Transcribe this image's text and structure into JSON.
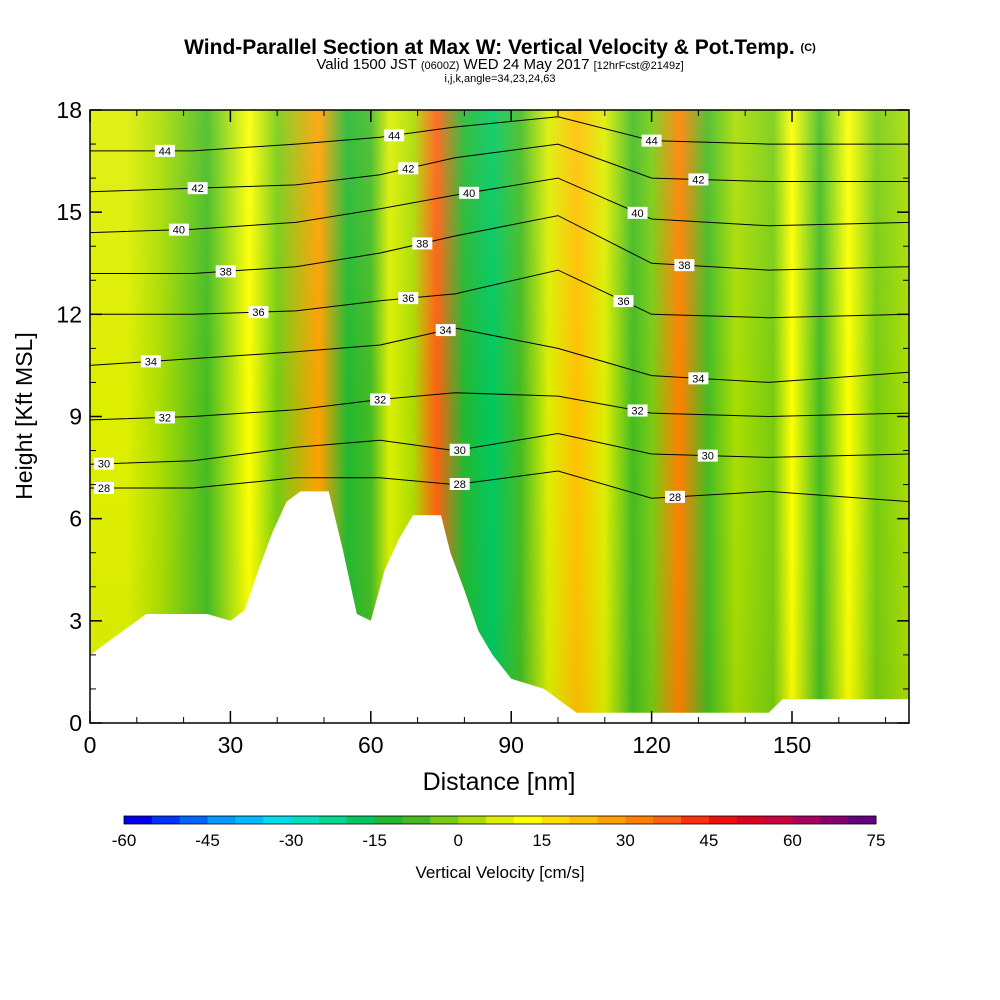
{
  "title": {
    "main": "Wind-Parallel Section at Max W: Vertical Velocity & Pot.Temp.",
    "main_mark": "(C)",
    "valid_prefix": "Valid 1500 JST",
    "valid_utc": "(0600Z)",
    "valid_date": "WED 24 May 2017",
    "valid_fcst": "[12hrFcst@2149z]",
    "ijk": "i,j,k,angle=34,23,24,63"
  },
  "chart_data": {
    "type": "heatmap",
    "xlabel": "Distance [nm]",
    "ylabel": "Height [Kft MSL]",
    "xlim": [
      0,
      175
    ],
    "ylim": [
      0,
      18
    ],
    "x_ticks": [
      0,
      30,
      60,
      90,
      120,
      150
    ],
    "y_ticks": [
      0,
      3,
      6,
      9,
      12,
      15,
      18
    ],
    "colorbar": {
      "label": "Vertical Velocity [cm/s]",
      "ticks": [
        -60,
        -45,
        -30,
        -15,
        0,
        15,
        30,
        45,
        60,
        75
      ],
      "levels": [
        -60,
        -55,
        -50,
        -45,
        -40,
        -35,
        -30,
        -25,
        -20,
        -15,
        -10,
        -5,
        0,
        5,
        10,
        15,
        20,
        25,
        30,
        35,
        40,
        45,
        50,
        55,
        60,
        65,
        70,
        75
      ],
      "colors": [
        "#0000ee",
        "#0033ff",
        "#0066ff",
        "#0099ff",
        "#00bbff",
        "#00ddee",
        "#00e0c0",
        "#00d890",
        "#00c860",
        "#22b830",
        "#44bb22",
        "#77cc11",
        "#aadd00",
        "#ddee00",
        "#ffff00",
        "#ffdd00",
        "#ffc000",
        "#ffa000",
        "#ff8000",
        "#ff6010",
        "#ff3010",
        "#ee1010",
        "#dd0020",
        "#cc0040",
        "#aa0060",
        "#880070",
        "#660080"
      ]
    },
    "velocity_columns": [
      {
        "x": 2,
        "w": 5
      },
      {
        "x": 8,
        "w": 7
      },
      {
        "x": 15,
        "w": 0
      },
      {
        "x": 25,
        "w": -6
      },
      {
        "x": 34,
        "w": 12
      },
      {
        "x": 40,
        "w": -4
      },
      {
        "x": 49,
        "w": 28
      },
      {
        "x": 55,
        "w": -14
      },
      {
        "x": 60,
        "w": -10
      },
      {
        "x": 64,
        "w": 8
      },
      {
        "x": 69,
        "w": 4
      },
      {
        "x": 74,
        "w": 38
      },
      {
        "x": 80,
        "w": -12
      },
      {
        "x": 86,
        "w": -18
      },
      {
        "x": 92,
        "w": -6
      },
      {
        "x": 98,
        "w": 6
      },
      {
        "x": 104,
        "w": 22
      },
      {
        "x": 110,
        "w": 6
      },
      {
        "x": 116,
        "w": -10
      },
      {
        "x": 120,
        "w": -4
      },
      {
        "x": 126,
        "w": 30
      },
      {
        "x": 132,
        "w": -6
      },
      {
        "x": 138,
        "w": 2
      },
      {
        "x": 146,
        "w": -4
      },
      {
        "x": 150,
        "w": 12
      },
      {
        "x": 156,
        "w": -6
      },
      {
        "x": 162,
        "w": 14
      },
      {
        "x": 168,
        "w": -3
      },
      {
        "x": 175,
        "w": 2
      }
    ],
    "theta_isolines": [
      {
        "value": 28,
        "label_x": [
          3,
          125,
          79
        ],
        "y": [
          6.9,
          6.9,
          7.2,
          7.2,
          7.0,
          7.4,
          6.6,
          6.8,
          6.5
        ]
      },
      {
        "value": 30,
        "label_x": [
          3,
          79,
          132
        ],
        "y": [
          7.6,
          7.7,
          8.1,
          8.3,
          8.0,
          8.5,
          7.9,
          7.8,
          7.9
        ]
      },
      {
        "value": 32,
        "label_x": [
          16,
          62,
          117
        ],
        "y": [
          8.9,
          9.0,
          9.2,
          9.5,
          9.7,
          9.6,
          9.1,
          9.0,
          9.1
        ]
      },
      {
        "value": 34,
        "label_x": [
          13,
          76,
          130
        ],
        "y": [
          10.5,
          10.7,
          10.9,
          11.1,
          11.6,
          11.0,
          10.2,
          10.0,
          10.3
        ]
      },
      {
        "value": 36,
        "label_x": [
          36,
          68,
          114
        ],
        "y": [
          12.0,
          12.0,
          12.1,
          12.4,
          12.6,
          13.3,
          12.0,
          11.9,
          12.0
        ]
      },
      {
        "value": 38,
        "label_x": [
          29,
          71,
          127
        ],
        "y": [
          13.2,
          13.2,
          13.4,
          13.8,
          14.3,
          14.9,
          13.5,
          13.3,
          13.4
        ]
      },
      {
        "value": 40,
        "label_x": [
          19,
          81,
          117
        ],
        "y": [
          14.4,
          14.5,
          14.7,
          15.1,
          15.5,
          16.0,
          14.8,
          14.6,
          14.7
        ]
      },
      {
        "value": 42,
        "label_x": [
          23,
          68,
          130
        ],
        "y": [
          15.6,
          15.7,
          15.8,
          16.1,
          16.6,
          17.0,
          16.0,
          15.9,
          15.9
        ]
      },
      {
        "value": 44,
        "label_x": [
          16,
          65,
          120
        ],
        "y": [
          16.8,
          16.8,
          17.0,
          17.2,
          17.5,
          17.8,
          17.1,
          17.0,
          17.0
        ]
      }
    ],
    "theta_x_nodes": [
      0,
      22,
      44,
      62,
      78,
      100,
      120,
      145,
      175
    ],
    "terrain": [
      [
        0,
        2.0
      ],
      [
        3,
        2.3
      ],
      [
        6,
        2.6
      ],
      [
        9,
        2.9
      ],
      [
        12,
        3.2
      ],
      [
        25,
        3.2
      ],
      [
        30,
        3.0
      ],
      [
        33,
        3.3
      ],
      [
        36,
        4.5
      ],
      [
        39,
        5.6
      ],
      [
        42,
        6.5
      ],
      [
        45,
        6.8
      ],
      [
        51,
        6.8
      ],
      [
        54,
        5.1
      ],
      [
        57,
        3.2
      ],
      [
        60,
        3.0
      ],
      [
        63,
        4.5
      ],
      [
        66,
        5.4
      ],
      [
        69,
        6.1
      ],
      [
        75,
        6.1
      ],
      [
        77,
        5.0
      ],
      [
        80,
        3.9
      ],
      [
        83,
        2.7
      ],
      [
        86,
        2.0
      ],
      [
        90,
        1.3
      ],
      [
        97,
        1.0
      ],
      [
        101,
        0.6
      ],
      [
        104,
        0.3
      ],
      [
        130,
        0.3
      ],
      [
        145,
        0.3
      ],
      [
        148,
        0.7
      ],
      [
        175,
        0.7
      ]
    ]
  }
}
